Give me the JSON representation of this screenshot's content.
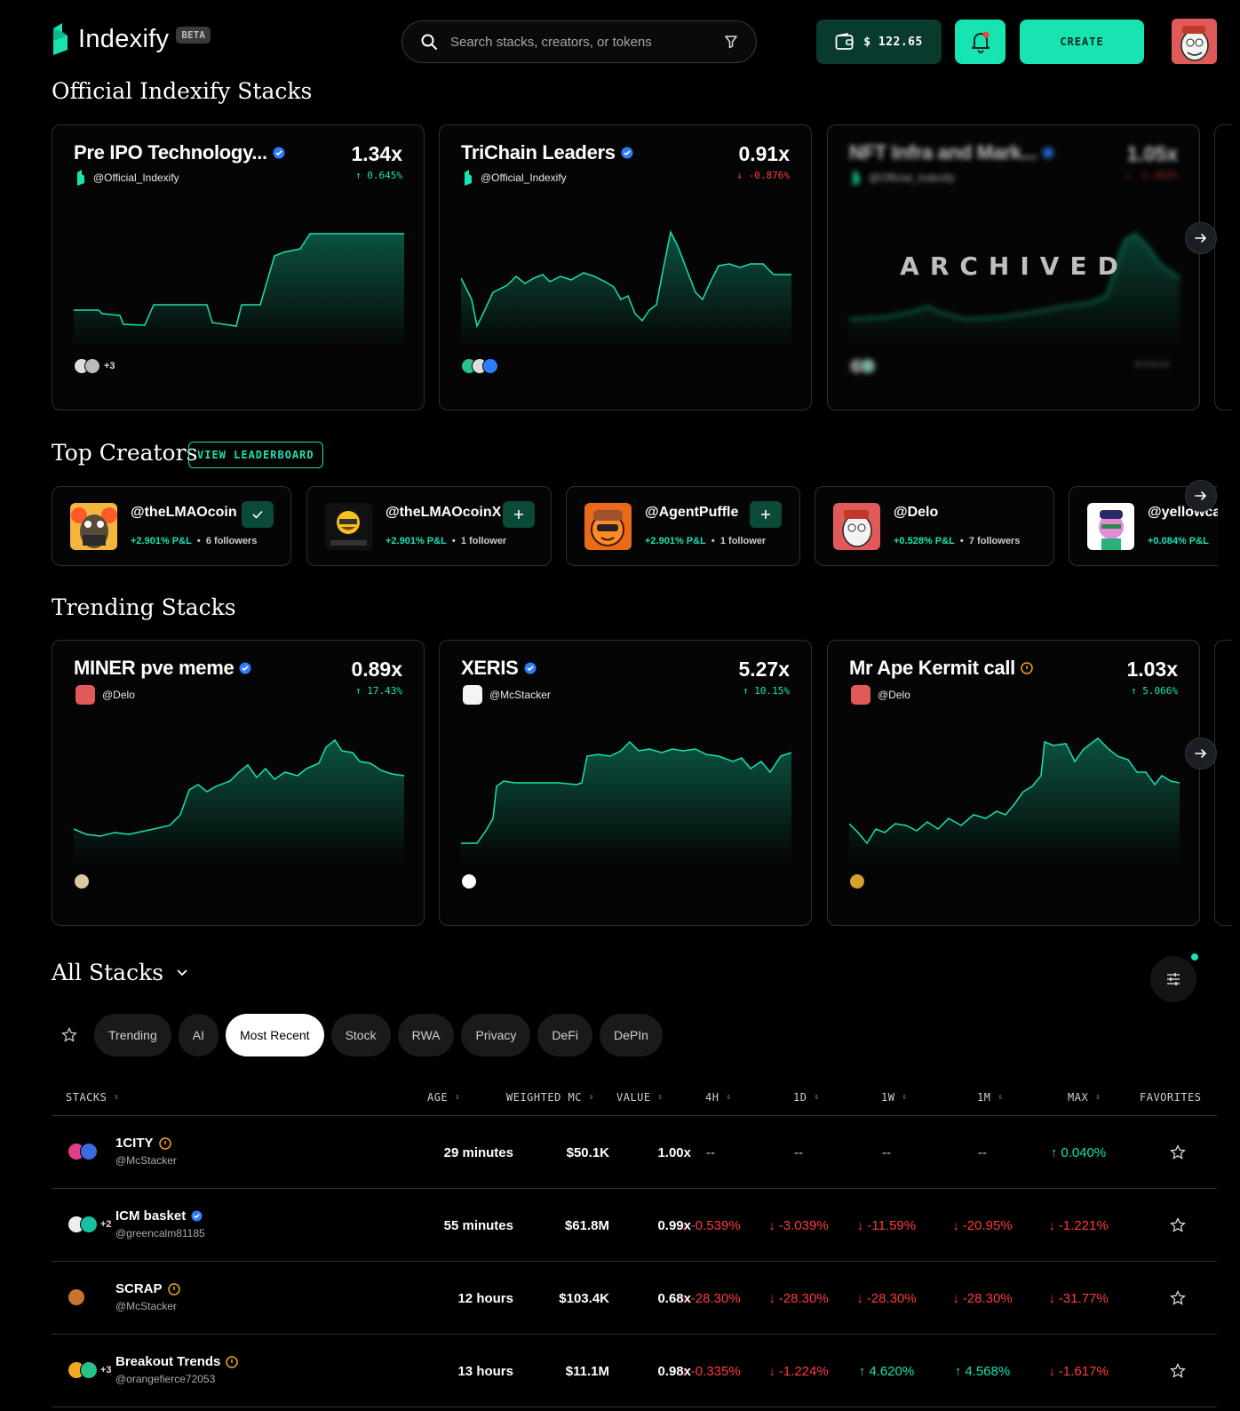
{
  "header": {
    "logo_text": "Indexify",
    "beta_label": "BETA",
    "search_placeholder": "Search stacks, creators, or tokens",
    "wallet_balance": "$ 122.65",
    "create_label": "CREATE"
  },
  "official": {
    "title": "Official Indexify Stacks",
    "cards": [
      {
        "name": "Pre IPO Technology...",
        "creator": "@Official_Indexify",
        "multiplier": "1.34x",
        "change": "0.645%",
        "dir": "up",
        "more": "+3"
      },
      {
        "name": "TriChain Leaders",
        "creator": "@Official_Indexify",
        "multiplier": "0.91x",
        "change": "-0.876%",
        "dir": "down",
        "more": ""
      },
      {
        "name": "NFT Infra and Mark...",
        "creator": "@Official_Indexify",
        "multiplier": "1.05x",
        "change": "-1.422%",
        "dir": "down",
        "more": "",
        "archived_label": "ARCHIVED",
        "archived_tag": "Archived"
      }
    ]
  },
  "creators": {
    "title": "Top Creators",
    "leaderboard_label": "VIEW LEADERBOARD",
    "items": [
      {
        "handle": "@theLMAOcoin",
        "pnl": "+2.901% P&L",
        "followers": "6 followers",
        "followed": true
      },
      {
        "handle": "@theLMAOcoinX",
        "pnl": "+2.901% P&L",
        "followers": "1 follower",
        "followed": false
      },
      {
        "handle": "@AgentPuffle",
        "pnl": "+2.901% P&L",
        "followers": "1 follower",
        "followed": false
      },
      {
        "handle": "@Delo",
        "pnl": "+0.528% P&L",
        "followers": "7 followers",
        "followed": null
      },
      {
        "handle": "@yellowca",
        "pnl": "+0.084% P&L",
        "followers": "",
        "followed": null
      }
    ]
  },
  "trending": {
    "title": "Trending Stacks",
    "cards": [
      {
        "name": "MINER pve meme",
        "creator": "@Delo",
        "multiplier": "0.89x",
        "change": "17.43%",
        "dir": "up"
      },
      {
        "name": "XERIS",
        "creator": "@McStacker",
        "multiplier": "5.27x",
        "change": "10.15%",
        "dir": "up"
      },
      {
        "name": "Mr Ape Kermit call",
        "creator": "@Delo",
        "multiplier": "1.03x",
        "change": "5.066%",
        "dir": "up"
      }
    ]
  },
  "all_stacks": {
    "title": "All Stacks",
    "tabs": [
      "Trending",
      "AI",
      "Most Recent",
      "Stock",
      "RWA",
      "Privacy",
      "DeFi",
      "DePIn"
    ],
    "active_tab": "Most Recent",
    "columns": [
      "STACKS",
      "AGE",
      "WEIGHTED MC",
      "VALUE",
      "4H",
      "1D",
      "1W",
      "1M",
      "MAX",
      "FAVORITES"
    ],
    "rows": [
      {
        "name": "1CITY",
        "creator": "@McStacker",
        "age": "29 minutes",
        "mc": "$50.1K",
        "value": "1.00x",
        "h4": "--",
        "d1": "--",
        "w1": "--",
        "m1": "--",
        "max": "0.040%",
        "dirs": [
          "",
          "",
          "",
          "",
          "up"
        ],
        "more": ""
      },
      {
        "name": "ICM basket",
        "creator": "@greencalm81185",
        "age": "55 minutes",
        "mc": "$61.8M",
        "value": "0.99x",
        "h4": "-0.539%",
        "d1": "-3.039%",
        "w1": "-11.59%",
        "m1": "-20.95%",
        "max": "-1.221%",
        "dirs": [
          "down",
          "down",
          "down",
          "down",
          "down"
        ],
        "more": "+2"
      },
      {
        "name": "SCRAP",
        "creator": "@McStacker",
        "age": "12 hours",
        "mc": "$103.4K",
        "value": "0.68x",
        "h4": "-28.30%",
        "d1": "-28.30%",
        "w1": "-28.30%",
        "m1": "-28.30%",
        "max": "-31.77%",
        "dirs": [
          "down",
          "down",
          "down",
          "down",
          "down"
        ],
        "more": ""
      },
      {
        "name": "Breakout Trends",
        "creator": "@orangefierce72053",
        "age": "13 hours",
        "mc": "$11.1M",
        "value": "0.98x",
        "h4": "-0.335%",
        "d1": "-1.224%",
        "w1": "4.620%",
        "m1": "4.568%",
        "max": "-1.617%",
        "dirs": [
          "down",
          "down",
          "up",
          "up",
          "down"
        ],
        "more": "+3"
      }
    ]
  },
  "colors": {
    "accent": "#18e3b2",
    "negative": "#ff3b3b",
    "background": "#000000",
    "wallet_bg": "#083a2e"
  }
}
